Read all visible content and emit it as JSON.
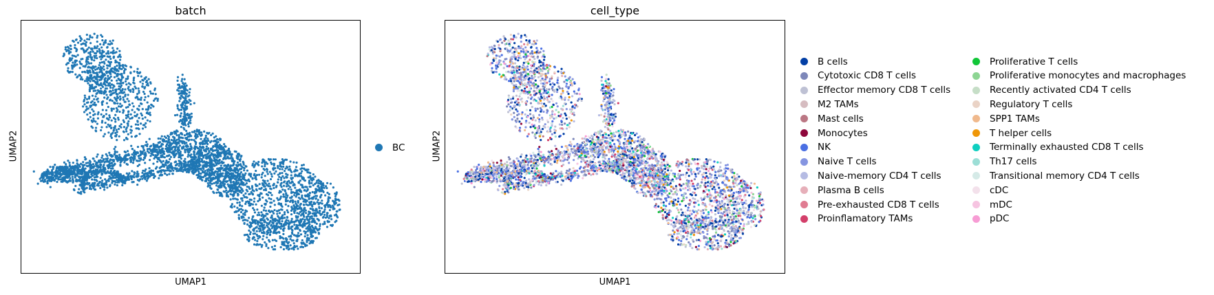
{
  "chart_data": [
    {
      "type": "scatter",
      "title": "batch",
      "xlabel": "UMAP1",
      "ylabel": "UMAP2",
      "legend": [
        {
          "name": "BC",
          "color": "#1f77b4"
        }
      ],
      "legend_placement": "right",
      "grid": false,
      "ticks": false
    },
    {
      "type": "scatter",
      "title": "cell_type",
      "xlabel": "UMAP1",
      "ylabel": "UMAP2",
      "legend_placement": "right, two columns",
      "grid": false,
      "ticks": false,
      "legend": [
        {
          "name": "B cells",
          "color": "#023fa5"
        },
        {
          "name": "Cytotoxic CD8 T cells",
          "color": "#7d87b9"
        },
        {
          "name": "Effector memory CD8 T cells",
          "color": "#bec1d4"
        },
        {
          "name": "M2 TAMs",
          "color": "#d6bcc0"
        },
        {
          "name": "Mast cells",
          "color": "#bb7784"
        },
        {
          "name": "Monocytes",
          "color": "#8e063b"
        },
        {
          "name": "NK",
          "color": "#4a6fe3"
        },
        {
          "name": "Naive T cells",
          "color": "#8595e1"
        },
        {
          "name": "Naive-memory CD4 T cells",
          "color": "#b5bbe3"
        },
        {
          "name": "Plasma B cells",
          "color": "#e6afb9"
        },
        {
          "name": "Pre-exhausted CD8 T cells",
          "color": "#e07b91"
        },
        {
          "name": "Proinflamatory TAMs",
          "color": "#d33f6a"
        },
        {
          "name": "Proliferative T cells",
          "color": "#11c638"
        },
        {
          "name": "Proliferative monocytes and macrophages",
          "color": "#8dd593"
        },
        {
          "name": "Recently activated CD4 T cells",
          "color": "#c6dec7"
        },
        {
          "name": "Regulatory T cells",
          "color": "#ead3c6"
        },
        {
          "name": "SPP1 TAMs",
          "color": "#f0b98d"
        },
        {
          "name": "T helper cells",
          "color": "#ef9708"
        },
        {
          "name": "Terminally exhausted CD8 T cells",
          "color": "#0fcfc0"
        },
        {
          "name": "Th17 cells",
          "color": "#9cded6"
        },
        {
          "name": "Transitional memory CD4 T cells",
          "color": "#d5eae7"
        },
        {
          "name": "cDC",
          "color": "#f3e1eb"
        },
        {
          "name": "mDC",
          "color": "#f6c4e1"
        },
        {
          "name": "pDC",
          "color": "#f79cd4"
        }
      ]
    }
  ]
}
